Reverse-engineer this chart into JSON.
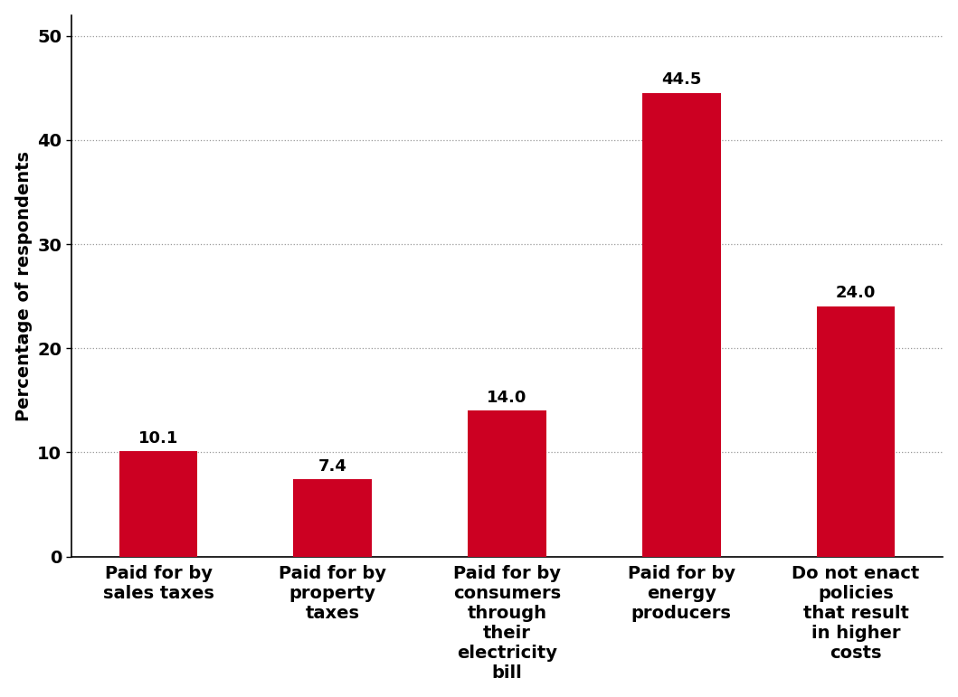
{
  "categories": [
    "Paid for by\nsales taxes",
    "Paid for by\nproperty\ntaxes",
    "Paid for by\nconsumers\nthrough\ntheir\nelectricity\nbill",
    "Paid for by\nenergy\nproducers",
    "Do not enact\npolicies\nthat result\nin higher\ncosts"
  ],
  "values": [
    10.1,
    7.4,
    14.0,
    44.5,
    24.0
  ],
  "bar_color": "#cc0022",
  "ylabel": "Percentage of respondents",
  "ylim": [
    0,
    52
  ],
  "yticks": [
    0,
    10,
    20,
    30,
    40,
    50
  ],
  "label_fontsize": 14,
  "ylabel_fontsize": 14,
  "tick_label_fontsize": 14,
  "value_label_fontsize": 13,
  "background_color": "#ffffff",
  "grid_color": "#999999",
  "bar_width": 0.45
}
